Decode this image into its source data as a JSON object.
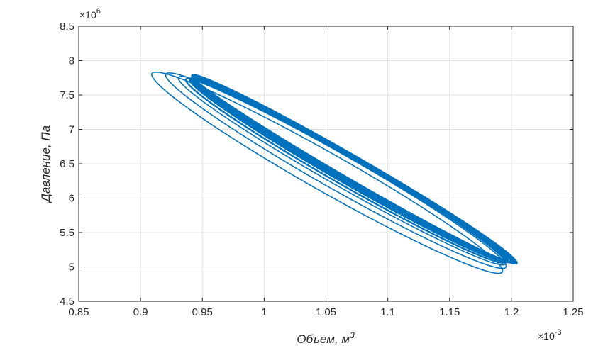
{
  "chart_data": {
    "type": "line",
    "title": "",
    "xlabel": "Объем, м",
    "xlabel_superscript": "3",
    "ylabel": "Давление, Па",
    "x_multiplier": "×10",
    "x_exponent": "-3",
    "y_multiplier": "×10",
    "y_exponent": "6",
    "xlim": [
      0.85,
      1.25
    ],
    "ylim": [
      4.5,
      8.5
    ],
    "x_ticks": [
      "0.85",
      "0.9",
      "0.95",
      "1",
      "1.05",
      "1.1",
      "1.15",
      "1.2",
      "1.25"
    ],
    "y_ticks": [
      "4.5",
      "5",
      "5.5",
      "6",
      "6.5",
      "7",
      "7.5",
      "8",
      "8.5"
    ],
    "grid": true,
    "line_color": "#0072BD",
    "series": [
      {
        "description": "pressure–volume trajectory in units of x (×1e-3 m^3) and y (×1e6 Pa)",
        "loops": [
          {
            "cx": 1.051,
            "cy": 6.37,
            "a": 0.134,
            "b": 0.17,
            "theta_start": 0.9,
            "theta_end": 7.18
          },
          {
            "cx": 1.058,
            "cy": 6.4,
            "a": 0.13,
            "b": 0.18,
            "theta_start": 0.9,
            "theta_end": 7.18
          },
          {
            "cx": 1.063,
            "cy": 6.4,
            "a": 0.125,
            "b": 0.2,
            "theta_start": 0.9,
            "theta_end": 7.18
          },
          {
            "cx": 1.066,
            "cy": 6.4,
            "a": 0.122,
            "b": 0.21,
            "theta_start": 0.9,
            "theta_end": 7.18
          },
          {
            "cx": 1.068,
            "cy": 6.41,
            "a": 0.121,
            "b": 0.22,
            "theta_start": 0.9,
            "theta_end": 7.18
          },
          {
            "cx": 1.069,
            "cy": 6.41,
            "a": 0.121,
            "b": 0.23,
            "theta_start": 0.9,
            "theta_end": 7.18
          },
          {
            "cx": 1.07,
            "cy": 6.41,
            "a": 0.122,
            "b": 0.235,
            "theta_start": 0.9,
            "theta_end": 7.18
          },
          {
            "cx": 1.071,
            "cy": 6.42,
            "a": 0.122,
            "b": 0.24,
            "theta_start": 0.9,
            "theta_end": 7.18
          },
          {
            "cx": 1.072,
            "cy": 6.42,
            "a": 0.122,
            "b": 0.245,
            "theta_start": 0.9,
            "theta_end": 7.18
          },
          {
            "cx": 1.072,
            "cy": 6.42,
            "a": 0.123,
            "b": 0.25,
            "theta_start": 0.9,
            "theta_end": 7.18
          },
          {
            "cx": 1.073,
            "cy": 6.42,
            "a": 0.123,
            "b": 0.255,
            "theta_start": 0.9,
            "theta_end": 7.18
          },
          {
            "cx": 1.073,
            "cy": 6.42,
            "a": 0.123,
            "b": 0.26,
            "theta_start": 0.9,
            "theta_end": 7.18
          },
          {
            "cx": 1.073,
            "cy": 6.42,
            "a": 0.124,
            "b": 0.27,
            "theta_start": 0.9,
            "theta_end": 7.18
          },
          {
            "cx": 1.073,
            "cy": 6.42,
            "a": 0.124,
            "b": 0.28,
            "theta_start": 0.9,
            "theta_end": 7.18
          }
        ]
      }
    ]
  }
}
